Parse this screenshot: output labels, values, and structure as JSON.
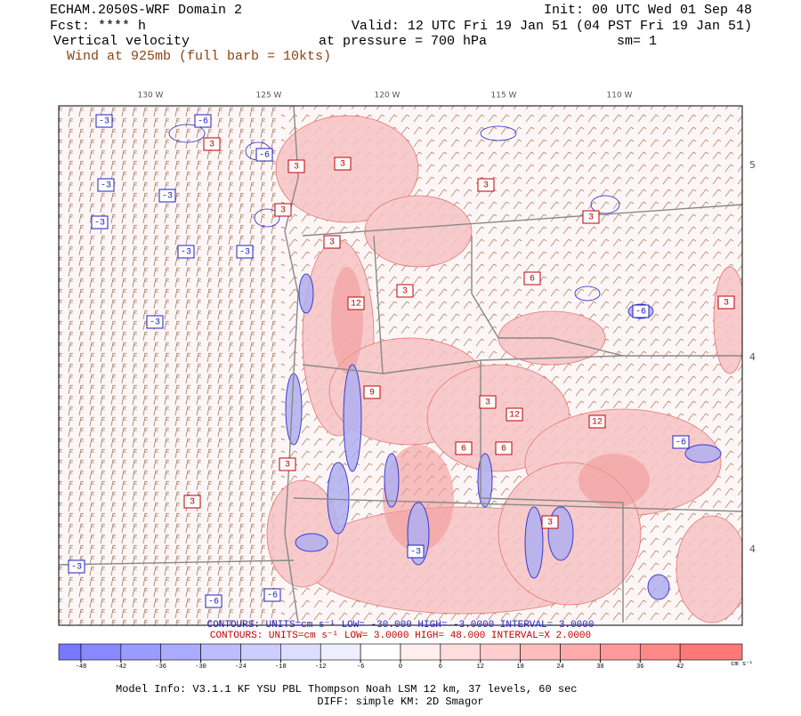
{
  "header": {
    "title": "ECHAM.2050S-WRF Domain 2",
    "init": "Init: 00 UTC Wed 01 Sep 48",
    "forecast": "Fcst: **** h",
    "valid": "Valid: 12 UTC Fri 19 Jan 51 (04 PST Fri 19 Jan 51)",
    "field": "Vertical velocity",
    "level": "at pressure =  700 hPa",
    "smoothing": "sm= 1",
    "wind": "Wind at 925mb (full barb = 10kts)"
  },
  "map": {
    "lon_labels": [
      "130 W",
      "125 W",
      "120 W",
      "115 W",
      "110 W"
    ],
    "lat_labels": [
      "5",
      "4",
      "4"
    ],
    "contour_labels": [
      "-3",
      "-6",
      "3",
      "-6",
      "3",
      "3",
      "-3",
      "-3",
      "3",
      "-3",
      "3",
      "-3",
      "3",
      "3",
      "-3",
      "12",
      "3",
      "6",
      "-3",
      "-6",
      "12",
      "3",
      "9",
      "6",
      "12",
      "3",
      "-3",
      "6",
      "3",
      "-6",
      "-3",
      "-6",
      "3",
      "-6",
      "3"
    ]
  },
  "contours": {
    "negative": "CONTOURS:  UNITS=cm s⁻¹  LOW= -30.000   HIGH= -3.0000   INTERVAL= 3.0000",
    "positive": "CONTOURS:  UNITS=cm s⁻¹  LOW=  3.0000    HIGH=  48.000    INTERVAL=X  2.0000"
  },
  "colorbar": {
    "ticks": [
      -48,
      -42,
      -36,
      -30,
      -24,
      -18,
      -12,
      -6,
      0,
      6,
      12,
      18,
      24,
      30,
      36,
      42
    ],
    "unit": "cm s⁻¹"
  },
  "footer": {
    "model": "Model Info: V3.1.1    KF      YSU PBL  Thompson    Noah LSM  12 km,   37 levels,   60 sec",
    "diff": "DIFF: simple KM: 2D Smagor"
  }
}
